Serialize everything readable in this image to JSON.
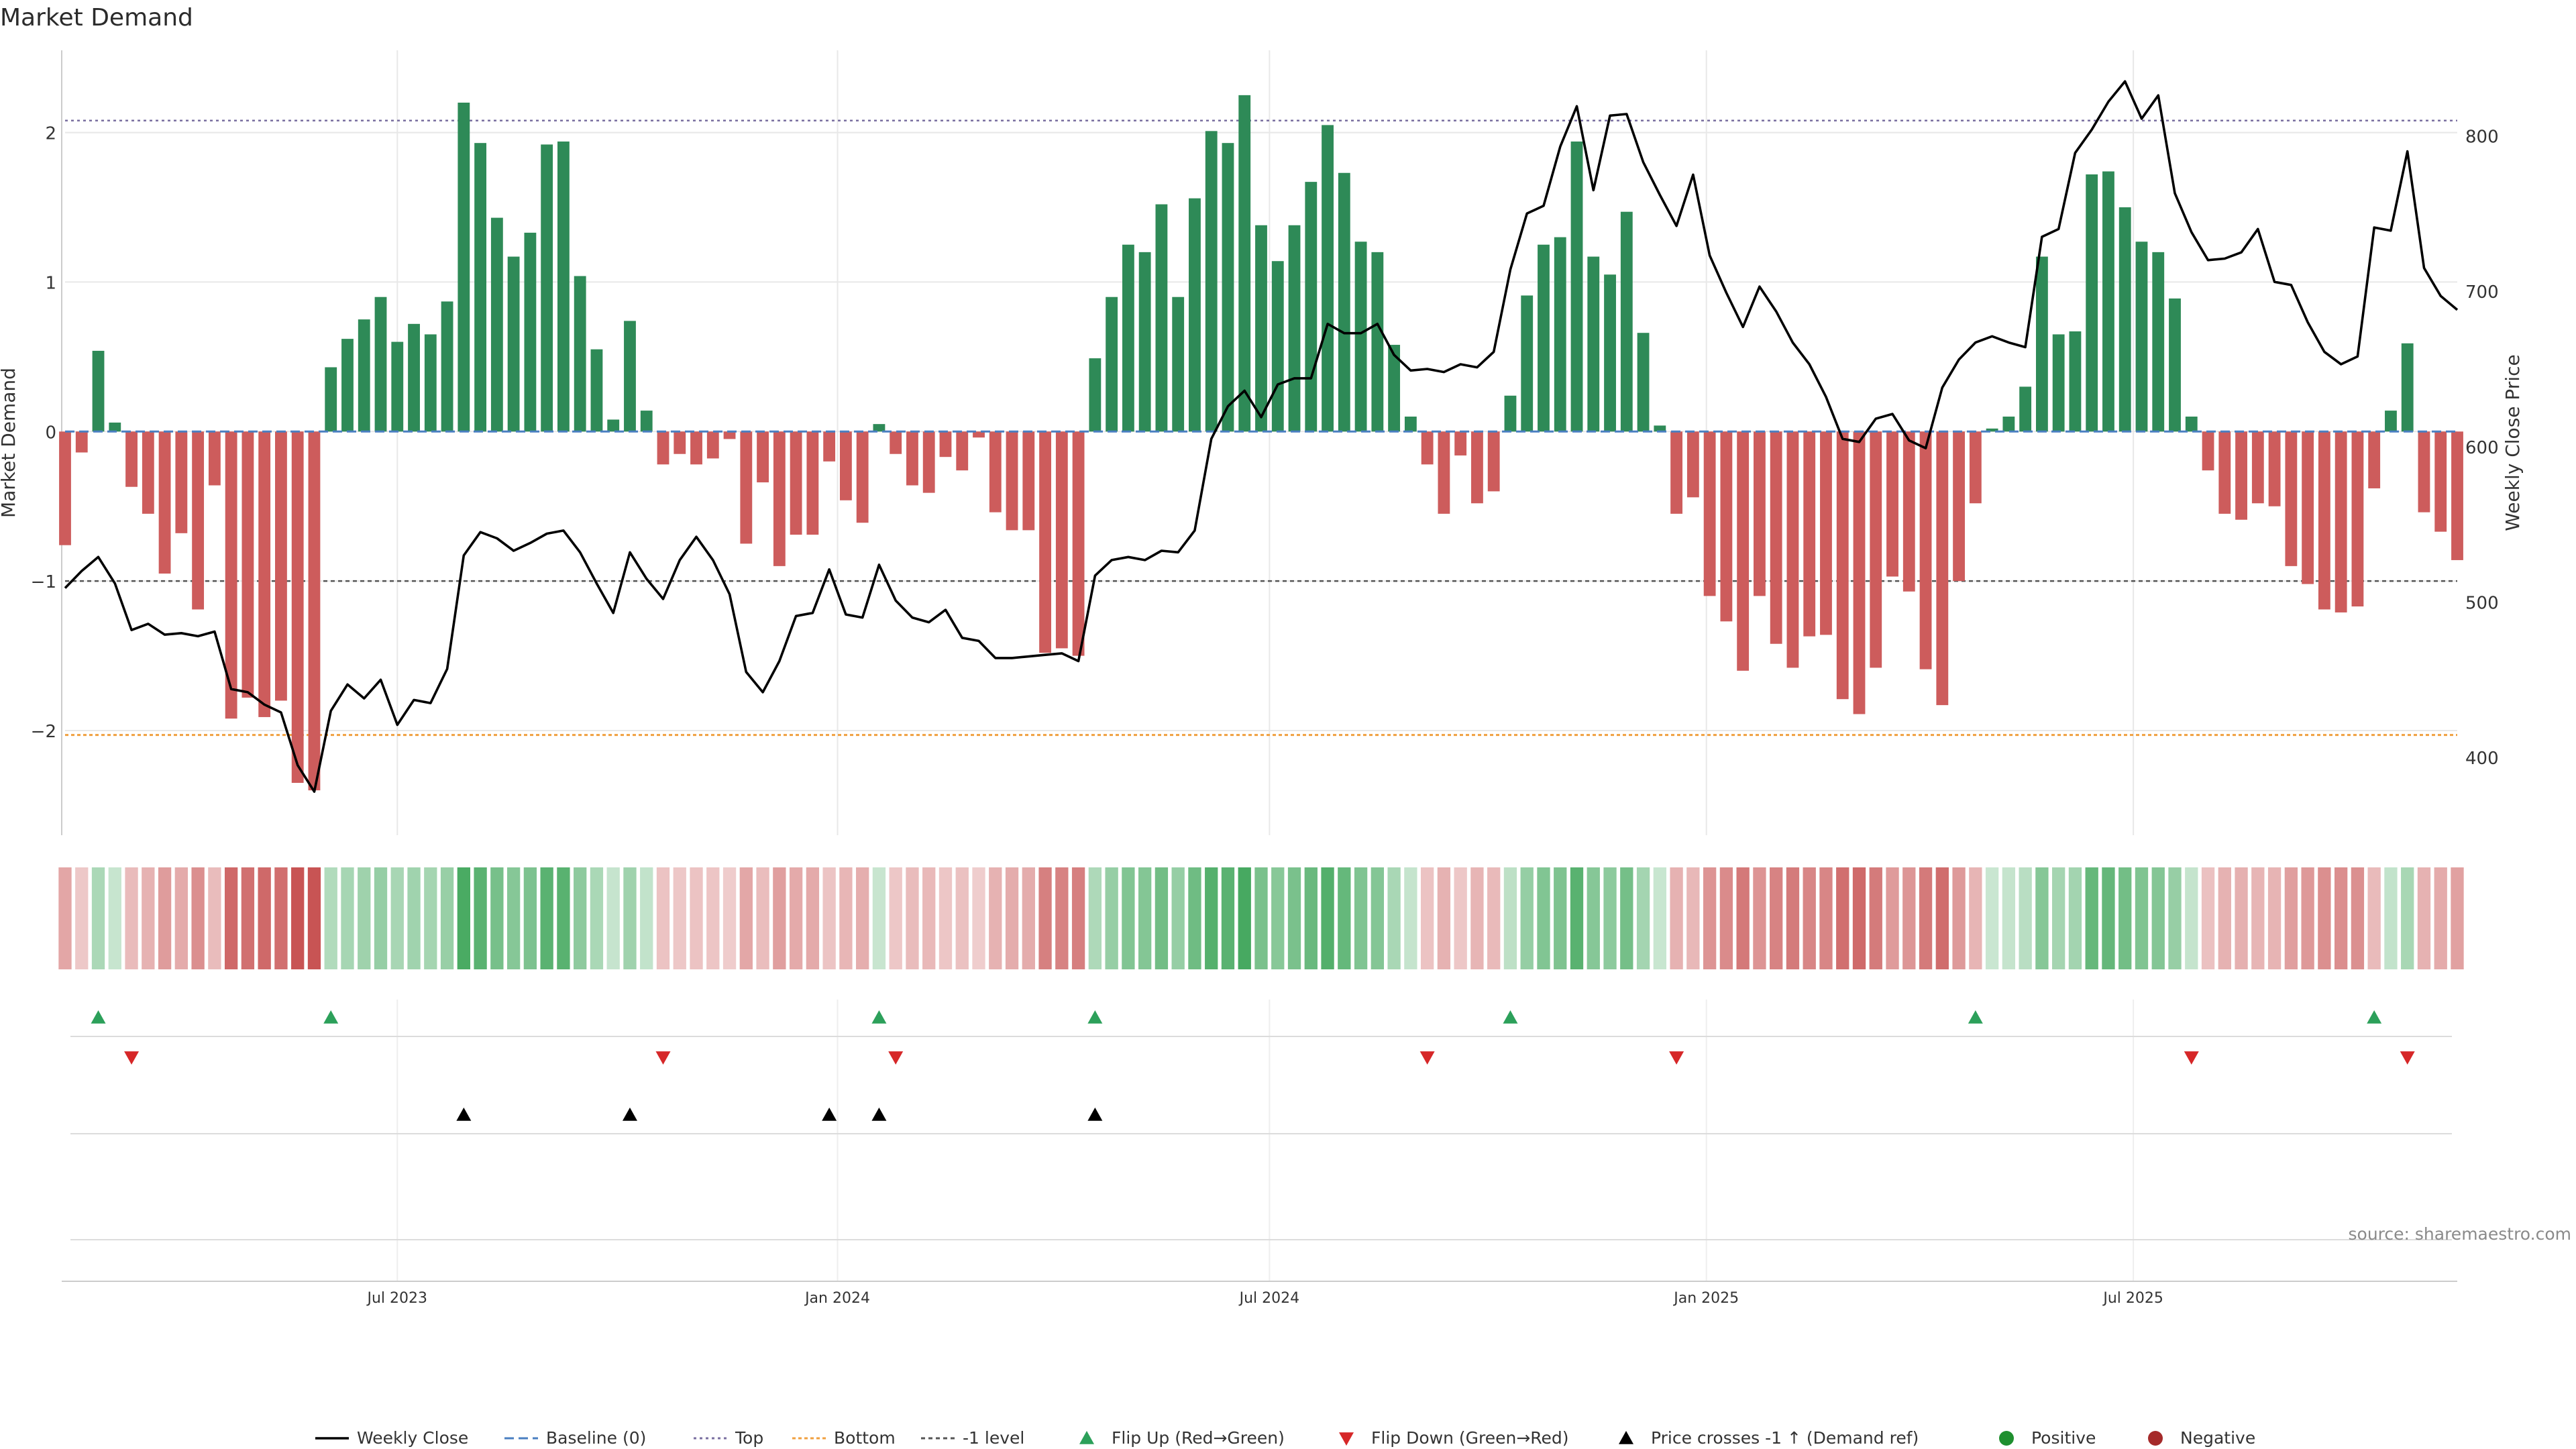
{
  "chart_data": {
    "type": "bar",
    "title": "Market Demand",
    "ylabel_left": "Market Demand",
    "ylabel_right": "Weekly Close Price",
    "source": "source: sharemaestro.com",
    "ylim_left": [
      -2.7,
      2.55
    ],
    "ylim_right": [
      350,
      855
    ],
    "yticks_left": [
      2,
      1,
      0,
      -1,
      -2
    ],
    "yticks_left_labels": [
      "2",
      "1",
      "0",
      "−1",
      "−2"
    ],
    "yticks_right": [
      800,
      700,
      600,
      500,
      400
    ],
    "reference_levels": {
      "top": 2.08,
      "bottom": -2.03,
      "minus_one": -1,
      "baseline": 0
    },
    "x_ticks": [
      {
        "index": 20,
        "label": "Jul 2023"
      },
      {
        "index": 46.5,
        "label": "Jan 2024"
      },
      {
        "index": 72.5,
        "label": "Jul 2024"
      },
      {
        "index": 98.8,
        "label": "Jan 2025"
      },
      {
        "index": 124.5,
        "label": "Jul 2025"
      }
    ],
    "demand": [
      -0.76,
      -0.14,
      0.54,
      0.06,
      -0.37,
      -0.55,
      -0.95,
      -0.68,
      -1.19,
      -0.36,
      -1.92,
      -1.78,
      -1.91,
      -1.8,
      -2.35,
      -2.4,
      0.43,
      0.62,
      0.75,
      0.9,
      0.6,
      0.72,
      0.65,
      0.87,
      2.2,
      1.93,
      1.43,
      1.17,
      1.33,
      1.92,
      1.94,
      1.04,
      0.55,
      0.08,
      0.74,
      0.14,
      -0.22,
      -0.15,
      -0.22,
      -0.18,
      -0.05,
      -0.75,
      -0.34,
      -0.9,
      -0.69,
      -0.69,
      -0.2,
      -0.46,
      -0.61,
      0.05,
      -0.15,
      -0.36,
      -0.41,
      -0.17,
      -0.26,
      -0.04,
      -0.54,
      -0.66,
      -0.66,
      -1.48,
      -1.45,
      -1.5,
      0.49,
      0.9,
      1.25,
      1.2,
      1.52,
      0.9,
      1.56,
      2.01,
      1.93,
      2.25,
      1.38,
      1.14,
      1.38,
      1.67,
      2.05,
      1.73,
      1.27,
      1.2,
      0.58,
      0.1,
      -0.22,
      -0.55,
      -0.16,
      -0.48,
      -0.4,
      0.24,
      0.91,
      1.25,
      1.3,
      1.94,
      1.17,
      1.05,
      1.47,
      0.66,
      0.04,
      -0.55,
      -0.44,
      -1.1,
      -1.27,
      -1.6,
      -1.1,
      -1.42,
      -1.58,
      -1.37,
      -1.36,
      -1.79,
      -1.89,
      -1.58,
      -0.97,
      -1.07,
      -1.59,
      -1.83,
      -1.0,
      -0.48,
      0.02,
      0.1,
      0.3,
      1.17,
      0.65,
      0.67,
      1.72,
      1.74,
      1.5,
      1.27,
      1.2,
      0.89,
      0.1,
      -0.26,
      -0.55,
      -0.59,
      -0.48,
      -0.5,
      -0.9,
      -1.02,
      -1.19,
      -1.21,
      -1.17,
      -0.38,
      0.14,
      0.59,
      -0.54,
      -0.67,
      -0.86
    ],
    "weekly_close": [
      509,
      520,
      529,
      512,
      482,
      486,
      479,
      480,
      478,
      481,
      444,
      442,
      434,
      429,
      395,
      378,
      430,
      447,
      438,
      450,
      421,
      437,
      435,
      457,
      530,
      545,
      541,
      533,
      538,
      544,
      546,
      532,
      512,
      493,
      532,
      515,
      502,
      527,
      542,
      527,
      505,
      455,
      442,
      462,
      491,
      493,
      521,
      492,
      490,
      524,
      501,
      490,
      487,
      495,
      477,
      475,
      464,
      464,
      465,
      466,
      467,
      462,
      517,
      527,
      529,
      527,
      533,
      532,
      546,
      605,
      626,
      636,
      619,
      640,
      644,
      644,
      679,
      673,
      673,
      679,
      659,
      649,
      650,
      648,
      653,
      651,
      661,
      714,
      750,
      755,
      793,
      819,
      765,
      813,
      814,
      783,
      762,
      742,
      775,
      723,
      699,
      677,
      703,
      687,
      667,
      653,
      632,
      605,
      603,
      618,
      621,
      604,
      599,
      638,
      656,
      667,
      671,
      667,
      664,
      735,
      740,
      789,
      804,
      822,
      835,
      811,
      826,
      763,
      738,
      720,
      721,
      725,
      740,
      706,
      704,
      680,
      661,
      653,
      658,
      741,
      739,
      790,
      715,
      697,
      688
    ],
    "flip_up_indices": [
      2,
      16,
      49,
      62,
      87,
      115,
      139
    ],
    "flip_down_indices": [
      4,
      36,
      50,
      82,
      97,
      128,
      141
    ],
    "price_cross_indices": [
      24,
      34,
      46,
      49,
      62
    ],
    "legend": [
      {
        "key": "weekly-close",
        "label": "Weekly Close"
      },
      {
        "key": "baseline",
        "label": "Baseline (0)"
      },
      {
        "key": "top",
        "label": "Top"
      },
      {
        "key": "bottom",
        "label": "Bottom"
      },
      {
        "key": "minus-one",
        "label": "-1 level"
      },
      {
        "key": "flip-up",
        "label": "Flip Up (Red→Green)"
      },
      {
        "key": "flip-down",
        "label": "Flip Down (Green→Red)"
      },
      {
        "key": "price-cross",
        "label": "Price crosses -1 ↑ (Demand ref)"
      },
      {
        "key": "positive",
        "label": "Positive"
      },
      {
        "key": "negative",
        "label": "Negative"
      }
    ],
    "colors": {
      "positive": "#2e8a57",
      "negative": "#cd5c5c",
      "line": "#000000",
      "baseline": "#4a7fc1",
      "top": "#7a6fa0",
      "bottom": "#f0a040",
      "minus_one": "#555555",
      "flip_up": "#2ca05a",
      "flip_down": "#d62728",
      "price_cross": "#000000",
      "grid": "#e8e8e8",
      "axis": "#cccccc",
      "positive_dot": "#1f8f2f",
      "negative_dot": "#a52a2a"
    }
  }
}
